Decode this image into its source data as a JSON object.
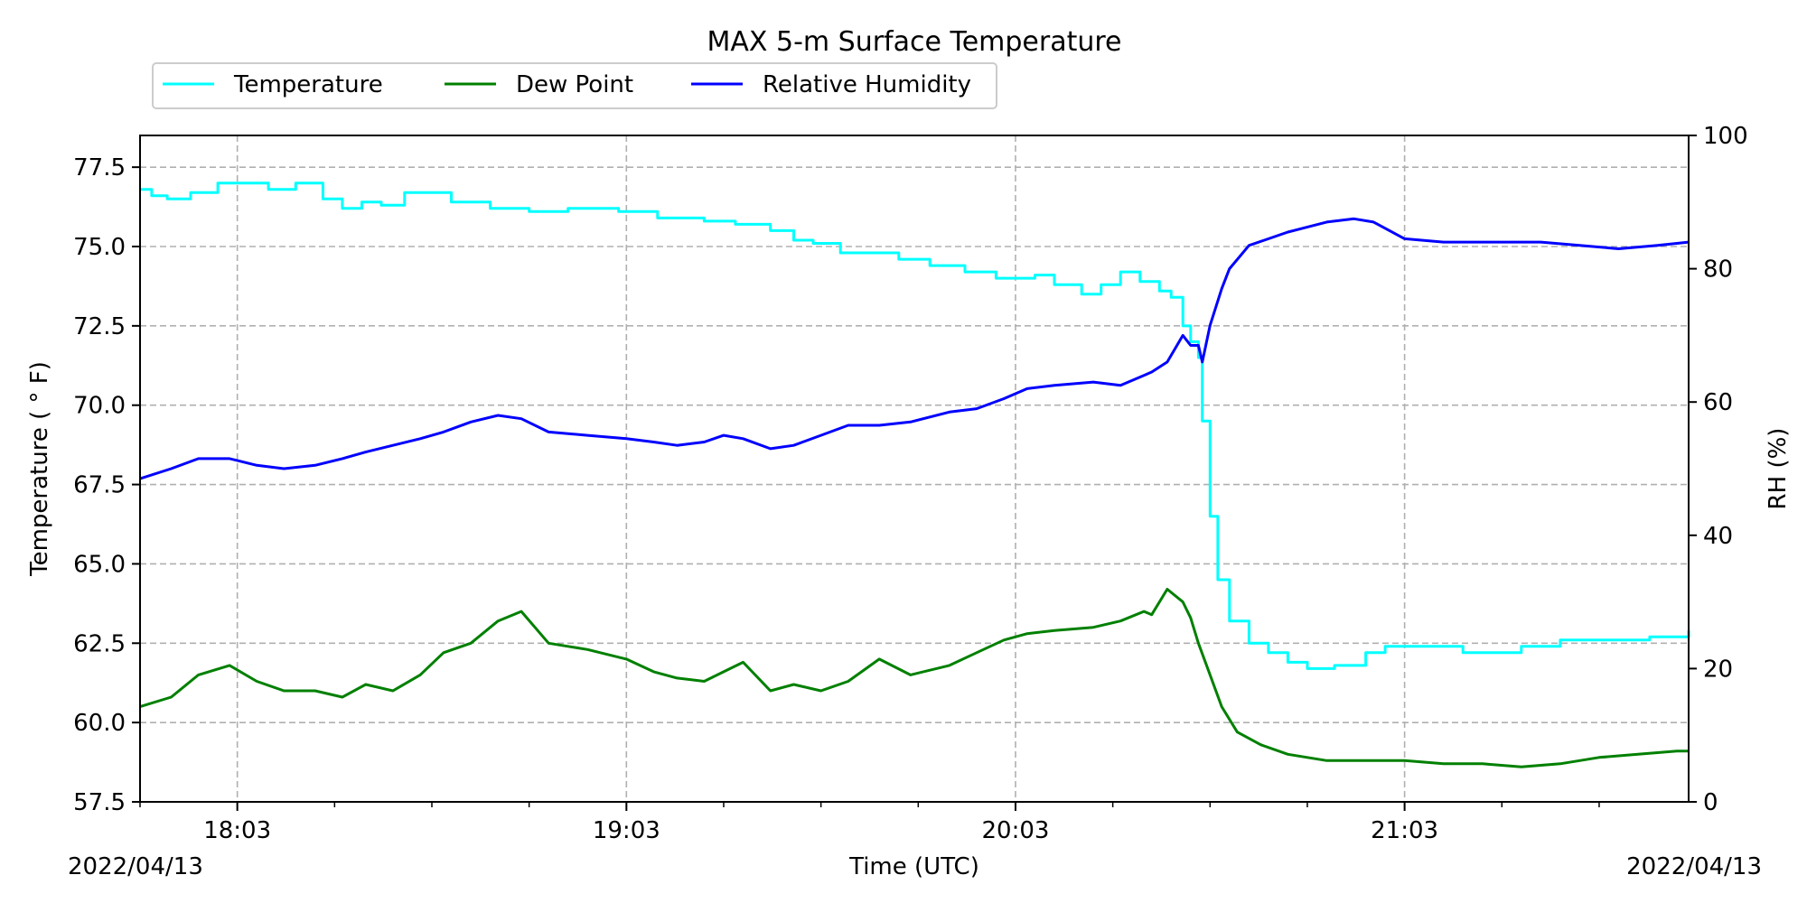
{
  "chart_data": {
    "type": "line",
    "title": "MAX 5-m Surface Temperature",
    "xlabel": "Time (UTC)",
    "ylabel": "Temperature ( $^\\circ$F)",
    "ylabel_display": "Temperature ( ° F)",
    "y2label": "RH (%)",
    "x_start_date": "2022/04/13",
    "x_end_date": "2022/04/13",
    "xlim_minutes": [
      17.9,
      21.9
    ],
    "x_ticks": [
      {
        "label": "18:03",
        "hour": 18.05
      },
      {
        "label": "19:03",
        "hour": 19.05
      },
      {
        "label": "20:03",
        "hour": 20.05
      },
      {
        "label": "21:03",
        "hour": 21.05
      }
    ],
    "ylim": [
      57.5,
      78.5
    ],
    "y_ticks": [
      "57.5",
      "60.0",
      "62.5",
      "65.0",
      "67.5",
      "70.0",
      "72.5",
      "75.0",
      "77.5"
    ],
    "y2lim": [
      0,
      100
    ],
    "y2_ticks": [
      "0",
      "20",
      "40",
      "60",
      "80",
      "100"
    ],
    "grid": true,
    "legend_position": "top-left, above axes",
    "series": [
      {
        "name": "Temperature",
        "axis": "left",
        "color": "#00ffff",
        "step": true,
        "x": [
          17.8,
          17.83,
          17.87,
          17.93,
          18.0,
          18.05,
          18.13,
          18.2,
          18.27,
          18.32,
          18.37,
          18.42,
          18.48,
          18.53,
          18.6,
          18.7,
          18.8,
          18.9,
          19.03,
          19.13,
          19.25,
          19.33,
          19.42,
          19.48,
          19.53,
          19.6,
          19.68,
          19.75,
          19.83,
          19.92,
          20.0,
          20.1,
          20.15,
          20.22,
          20.27,
          20.32,
          20.37,
          20.42,
          20.45,
          20.48,
          20.5,
          20.52,
          20.53,
          20.55,
          20.57,
          20.6,
          20.65,
          20.7,
          20.75,
          20.8,
          20.87,
          20.95,
          21.0,
          21.1,
          21.2,
          21.25,
          21.35,
          21.45,
          21.55,
          21.68,
          21.78
        ],
        "values": [
          76.8,
          76.6,
          76.5,
          76.7,
          77.0,
          77.0,
          76.8,
          77.0,
          76.5,
          76.2,
          76.4,
          76.3,
          76.7,
          76.7,
          76.4,
          76.2,
          76.1,
          76.2,
          76.1,
          75.9,
          75.8,
          75.7,
          75.5,
          75.2,
          75.1,
          74.8,
          74.8,
          74.6,
          74.4,
          74.2,
          74.0,
          74.1,
          73.8,
          73.5,
          73.8,
          74.2,
          73.9,
          73.6,
          73.4,
          72.5,
          72.0,
          71.5,
          69.5,
          66.5,
          64.5,
          63.2,
          62.5,
          62.2,
          61.9,
          61.7,
          61.8,
          62.2,
          62.4,
          62.4,
          62.2,
          62.2,
          62.4,
          62.6,
          62.6,
          62.7,
          62.9
        ]
      },
      {
        "name": "Dew Point",
        "axis": "left",
        "color": "#008000",
        "step": false,
        "x": [
          17.8,
          17.88,
          17.95,
          18.03,
          18.1,
          18.17,
          18.25,
          18.32,
          18.38,
          18.45,
          18.52,
          18.58,
          18.65,
          18.72,
          18.78,
          18.85,
          18.95,
          19.05,
          19.12,
          19.18,
          19.25,
          19.3,
          19.35,
          19.42,
          19.48,
          19.55,
          19.62,
          19.7,
          19.78,
          19.88,
          19.95,
          20.02,
          20.08,
          20.15,
          20.25,
          20.32,
          20.38,
          20.4,
          20.44,
          20.48,
          20.5,
          20.52,
          20.55,
          20.58,
          20.62,
          20.68,
          20.75,
          20.85,
          20.95,
          21.05,
          21.15,
          21.25,
          21.35,
          21.45,
          21.55,
          21.65,
          21.75,
          21.78
        ],
        "values": [
          60.5,
          60.8,
          61.5,
          61.8,
          61.3,
          61.0,
          61.0,
          60.8,
          61.2,
          61.0,
          61.5,
          62.2,
          62.5,
          63.2,
          63.5,
          62.5,
          62.3,
          62.0,
          61.6,
          61.4,
          61.3,
          61.6,
          61.9,
          61.0,
          61.2,
          61.0,
          61.3,
          62.0,
          61.5,
          61.8,
          62.2,
          62.6,
          62.8,
          62.9,
          63.0,
          63.2,
          63.5,
          63.4,
          64.2,
          63.8,
          63.3,
          62.5,
          61.5,
          60.5,
          59.7,
          59.3,
          59.0,
          58.8,
          58.8,
          58.8,
          58.7,
          58.7,
          58.6,
          58.7,
          58.9,
          59.0,
          59.1,
          59.1
        ]
      },
      {
        "name": "Relative Humidity",
        "axis": "right",
        "color": "#0000ff",
        "step": false,
        "x": [
          17.8,
          17.88,
          17.95,
          18.03,
          18.1,
          18.17,
          18.25,
          18.32,
          18.38,
          18.45,
          18.52,
          18.58,
          18.65,
          18.72,
          18.78,
          18.85,
          18.95,
          19.05,
          19.12,
          19.18,
          19.25,
          19.3,
          19.35,
          19.42,
          19.48,
          19.55,
          19.62,
          19.7,
          19.78,
          19.88,
          19.95,
          20.02,
          20.08,
          20.15,
          20.25,
          20.32,
          20.38,
          20.4,
          20.44,
          20.46,
          20.48,
          20.5,
          20.52,
          20.53,
          20.55,
          20.58,
          20.6,
          20.65,
          20.75,
          20.85,
          20.92,
          20.97,
          21.05,
          21.15,
          21.25,
          21.35,
          21.4,
          21.5,
          21.6,
          21.7,
          21.78
        ],
        "values": [
          48.5,
          50.0,
          51.5,
          51.5,
          50.5,
          50.0,
          50.5,
          51.5,
          52.5,
          53.5,
          54.5,
          55.5,
          57.0,
          58.0,
          57.5,
          55.5,
          55.0,
          54.5,
          54.0,
          53.5,
          54.0,
          55.0,
          54.5,
          53.0,
          53.5,
          55.0,
          56.5,
          56.5,
          57.0,
          58.5,
          59.0,
          60.5,
          62.0,
          62.5,
          63.0,
          62.5,
          64.0,
          64.5,
          66.0,
          68.0,
          70.0,
          68.5,
          68.5,
          66.0,
          71.5,
          77.0,
          80.0,
          83.5,
          85.5,
          87.0,
          87.5,
          87.0,
          84.5,
          84.0,
          84.0,
          84.0,
          84.0,
          83.5,
          83.0,
          83.5,
          84.0
        ]
      }
    ]
  }
}
